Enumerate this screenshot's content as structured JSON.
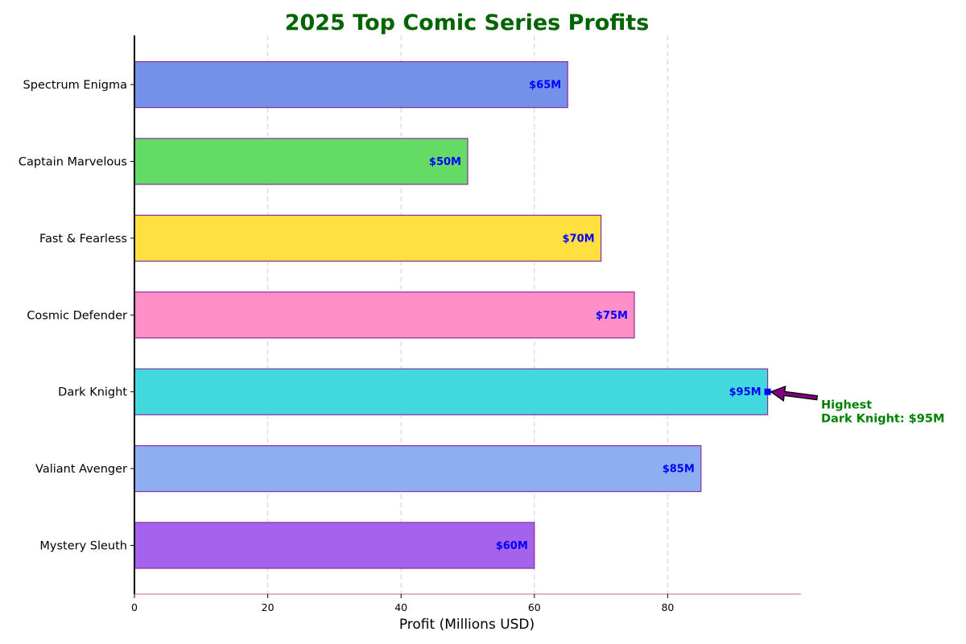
{
  "chart_data": {
    "type": "bar",
    "orientation": "horizontal",
    "title": "2025 Top Comic Series Profits",
    "xlabel": "Profit (Millions USD)",
    "ylabel": "",
    "xlim": [
      0,
      100
    ],
    "xticks": [
      0,
      20,
      40,
      60,
      80
    ],
    "grid": "vertical-dashed",
    "categories": [
      "Mystery Sleuth",
      "Valiant Avenger",
      "Dark Knight",
      "Cosmic Defender",
      "Fast & Fearless",
      "Captain Marvelous",
      "Spectrum Enigma"
    ],
    "values": [
      60,
      85,
      95,
      75,
      70,
      50,
      65
    ],
    "value_labels": [
      "$60M",
      "$85M",
      "$95M",
      "$75M",
      "$70M",
      "$50M",
      "$65M"
    ],
    "bar_colors": [
      "#a562ec",
      "#8eaef2",
      "#41d9dd",
      "#ff8fc6",
      "#ffe040",
      "#64db64",
      "#7491ea"
    ],
    "bar_edge_color": "#8a2ea0",
    "value_label_color": "#0000ff",
    "title_color": "#006400",
    "annotation": {
      "line1": "Highest",
      "line2": "Dark Knight: $95M",
      "target_category": "Dark Knight",
      "target_value": 95,
      "color": "#008000",
      "arrow_color": "#800080",
      "marker_color": "#0000ff"
    }
  }
}
